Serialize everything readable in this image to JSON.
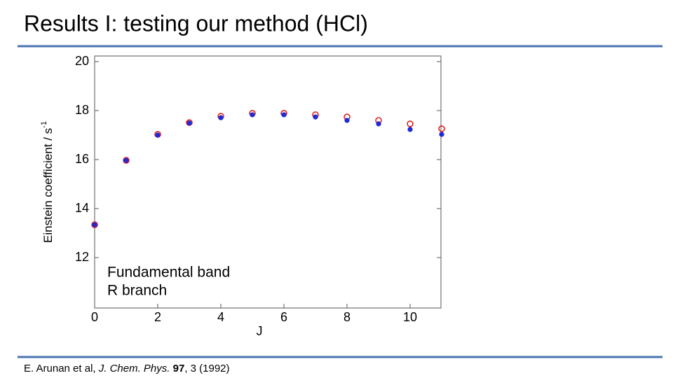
{
  "chart_data": {
    "type": "scatter",
    "title": "Results I:   testing our method (HCl)",
    "xlabel": "J",
    "ylabel": "Einstein coefficient / s",
    "ylabel_superscript": "-1",
    "annotations": [
      "Fundamental band",
      "R branch"
    ],
    "x": [
      0,
      1,
      2,
      3,
      4,
      5,
      6,
      7,
      8,
      9,
      10,
      11
    ],
    "series": [
      {
        "color": "#e02020",
        "marker": "open-circle",
        "values": [
          13.34,
          15.97,
          17.03,
          17.51,
          17.77,
          17.89,
          17.89,
          17.83,
          17.74,
          17.6,
          17.46,
          17.26
        ]
      },
      {
        "color": "#1f2bd6",
        "marker": "filled-circle",
        "values": [
          13.34,
          15.97,
          17.0,
          17.49,
          17.71,
          17.83,
          17.83,
          17.74,
          17.6,
          17.46,
          17.23,
          17.03
        ]
      }
    ],
    "xlim": [
      0,
      11
    ],
    "ylim": [
      10,
      20
    ],
    "xticks": [
      0,
      2,
      4,
      6,
      8,
      10
    ],
    "yticks": [
      12,
      14,
      16,
      18,
      20
    ],
    "citation": [
      "E. Arunan et al, ",
      "J. Chem. Phys.",
      " ",
      "97",
      ", 3 (1992)"
    ]
  }
}
